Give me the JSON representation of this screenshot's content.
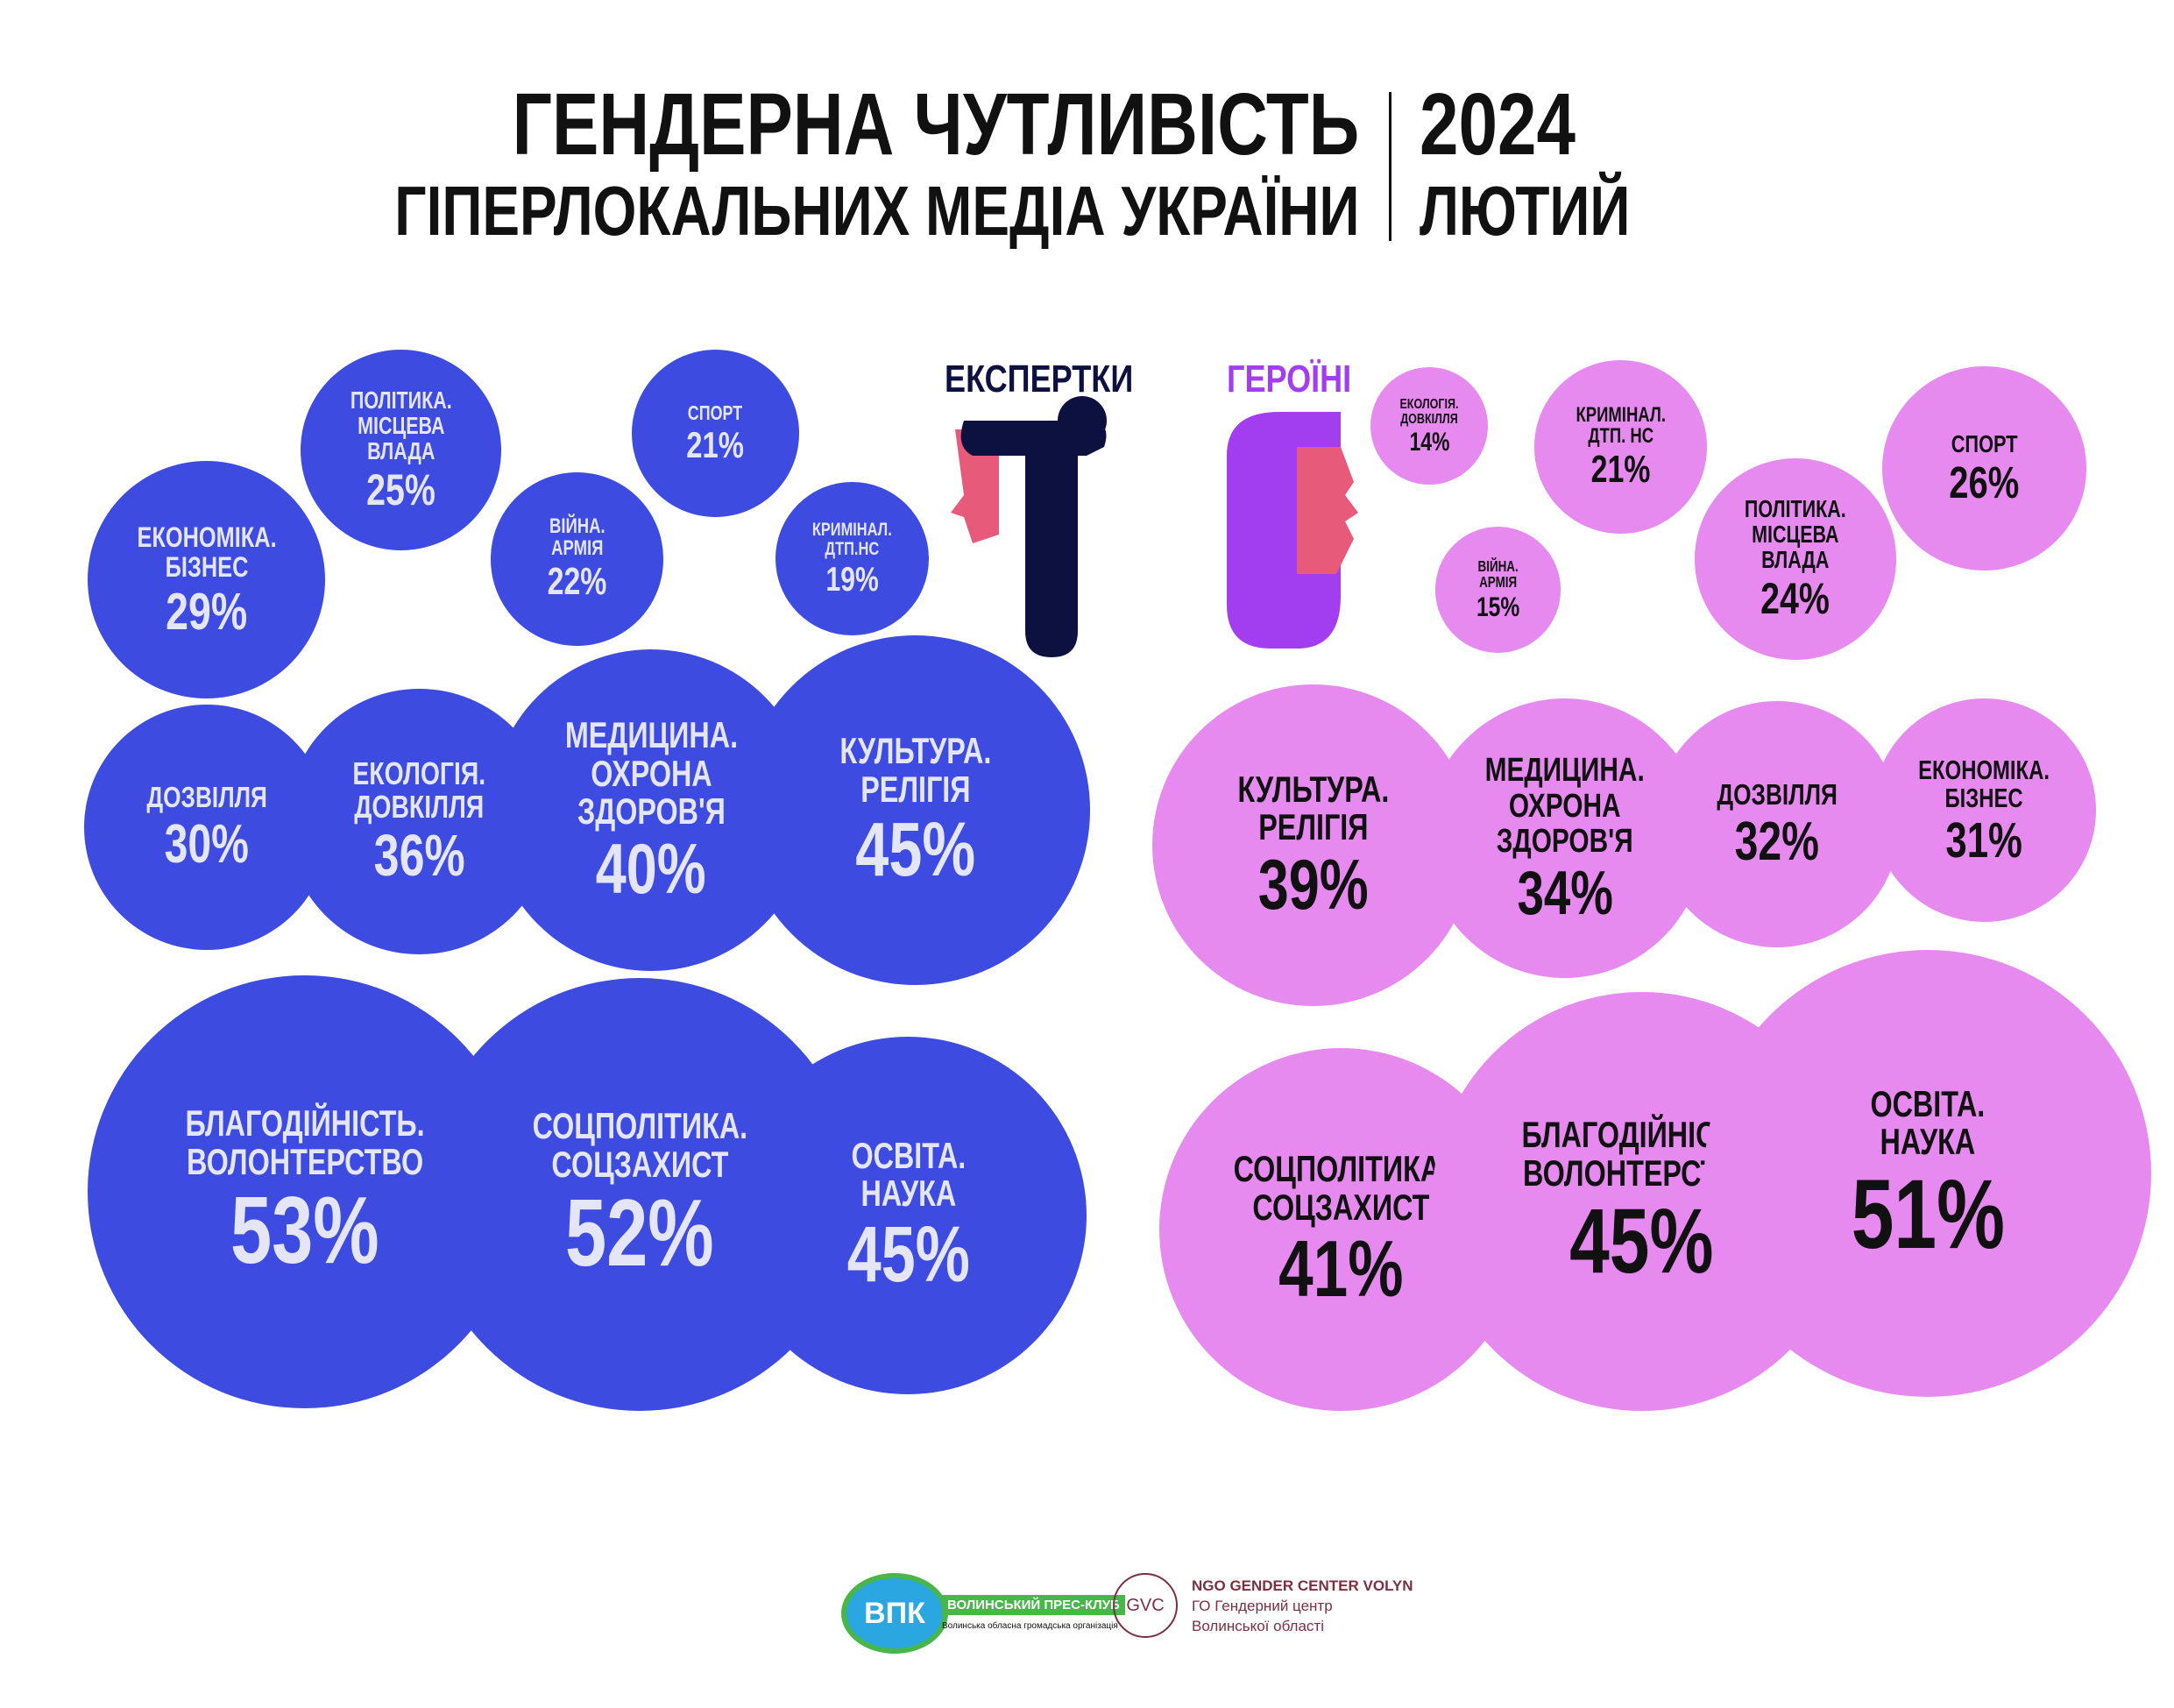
{
  "header": {
    "title_line1": "ГЕНДЕРНА ЧУТЛИВІСТЬ",
    "title_line2": "ГІПЕРЛОКАЛЬНИХ МЕДІА УКРАЇНИ",
    "year": "2024",
    "month": "ЛЮТИЙ"
  },
  "chart_data": [
    {
      "type": "bubble",
      "title": "ЕКСПЕРТКИ",
      "color": "#3d4be0",
      "text_color": "#e4e6f7",
      "categories": [
        "ЕКОНОМІКА.\nБІЗНЕС",
        "ПОЛІТИКА.\nМІСЦЕВА ВЛАДА",
        "СПОРТ",
        "ВІЙНА.\nАРМІЯ",
        "КРИМІНАЛ.\nДТП.НС",
        "ДОЗВІЛЛЯ",
        "ЕКОЛОГІЯ.\nДОВКІЛЛЯ",
        "МЕДИЦИНА.\nОХРОНА\nЗДОРОВ'Я",
        "КУЛЬТУРА.\nРЕЛІГІЯ",
        "БЛАГОДІЙНІСТЬ.\nВОЛОНТЕРСТВО",
        "СОЦПОЛІТИКА.\nСОЦЗАХИСТ",
        "ОСВІТА.\nНАУКА"
      ],
      "values": [
        29,
        25,
        21,
        22,
        19,
        30,
        36,
        40,
        45,
        53,
        52,
        45
      ],
      "value_labels": [
        "29%",
        "25%",
        "21%",
        "22%",
        "19%",
        "30%",
        "36%",
        "40%",
        "45%",
        "53%",
        "52%",
        "45%"
      ]
    },
    {
      "type": "bubble",
      "title": "ГЕРОЇНІ",
      "color": "#e78af0",
      "text_color": "#111111",
      "categories": [
        "ЕКОЛОГІЯ.\nДОВКІЛЛЯ",
        "КРИМІНАЛ.\nДТП. НС",
        "СПОРТ",
        "ВІЙНА.\nАРМІЯ",
        "ПОЛІТИКА.\nМІСЦЕВА ВЛАДА",
        "КУЛЬТУРА.\nРЕЛІГІЯ",
        "МЕДИЦИНА.\nОХРОНА\nЗДОРОВ'Я",
        "ДОЗВІЛЛЯ",
        "ЕКОНОМІКА.\nБІЗНЕС",
        "СОЦПОЛІТИКА.\nСОЦЗАХИСТ",
        "БЛАГОДІЙНІСТЬ.\nВОЛОНТЕРСТВО",
        "ОСВІТА.\nНАУКА"
      ],
      "values": [
        14,
        21,
        26,
        15,
        24,
        39,
        34,
        32,
        31,
        41,
        45,
        51
      ],
      "value_labels": [
        "14%",
        "21%",
        "26%",
        "15%",
        "24%",
        "39%",
        "34%",
        "32%",
        "31%",
        "41%",
        "45%",
        "51%"
      ]
    }
  ],
  "footer": {
    "logo1_mark": "ВПК",
    "logo1_name": "ВОЛИНСЬКИЙ ПРЕС-КЛУБ",
    "logo1_sub": "Волинська обласна громадська організація",
    "logo2_mark": "GVC",
    "logo2_line1": "NGO GENDER CENTER VOLYN",
    "logo2_line2": "ГО Гендерний центр",
    "logo2_line3": "Волинської області"
  }
}
